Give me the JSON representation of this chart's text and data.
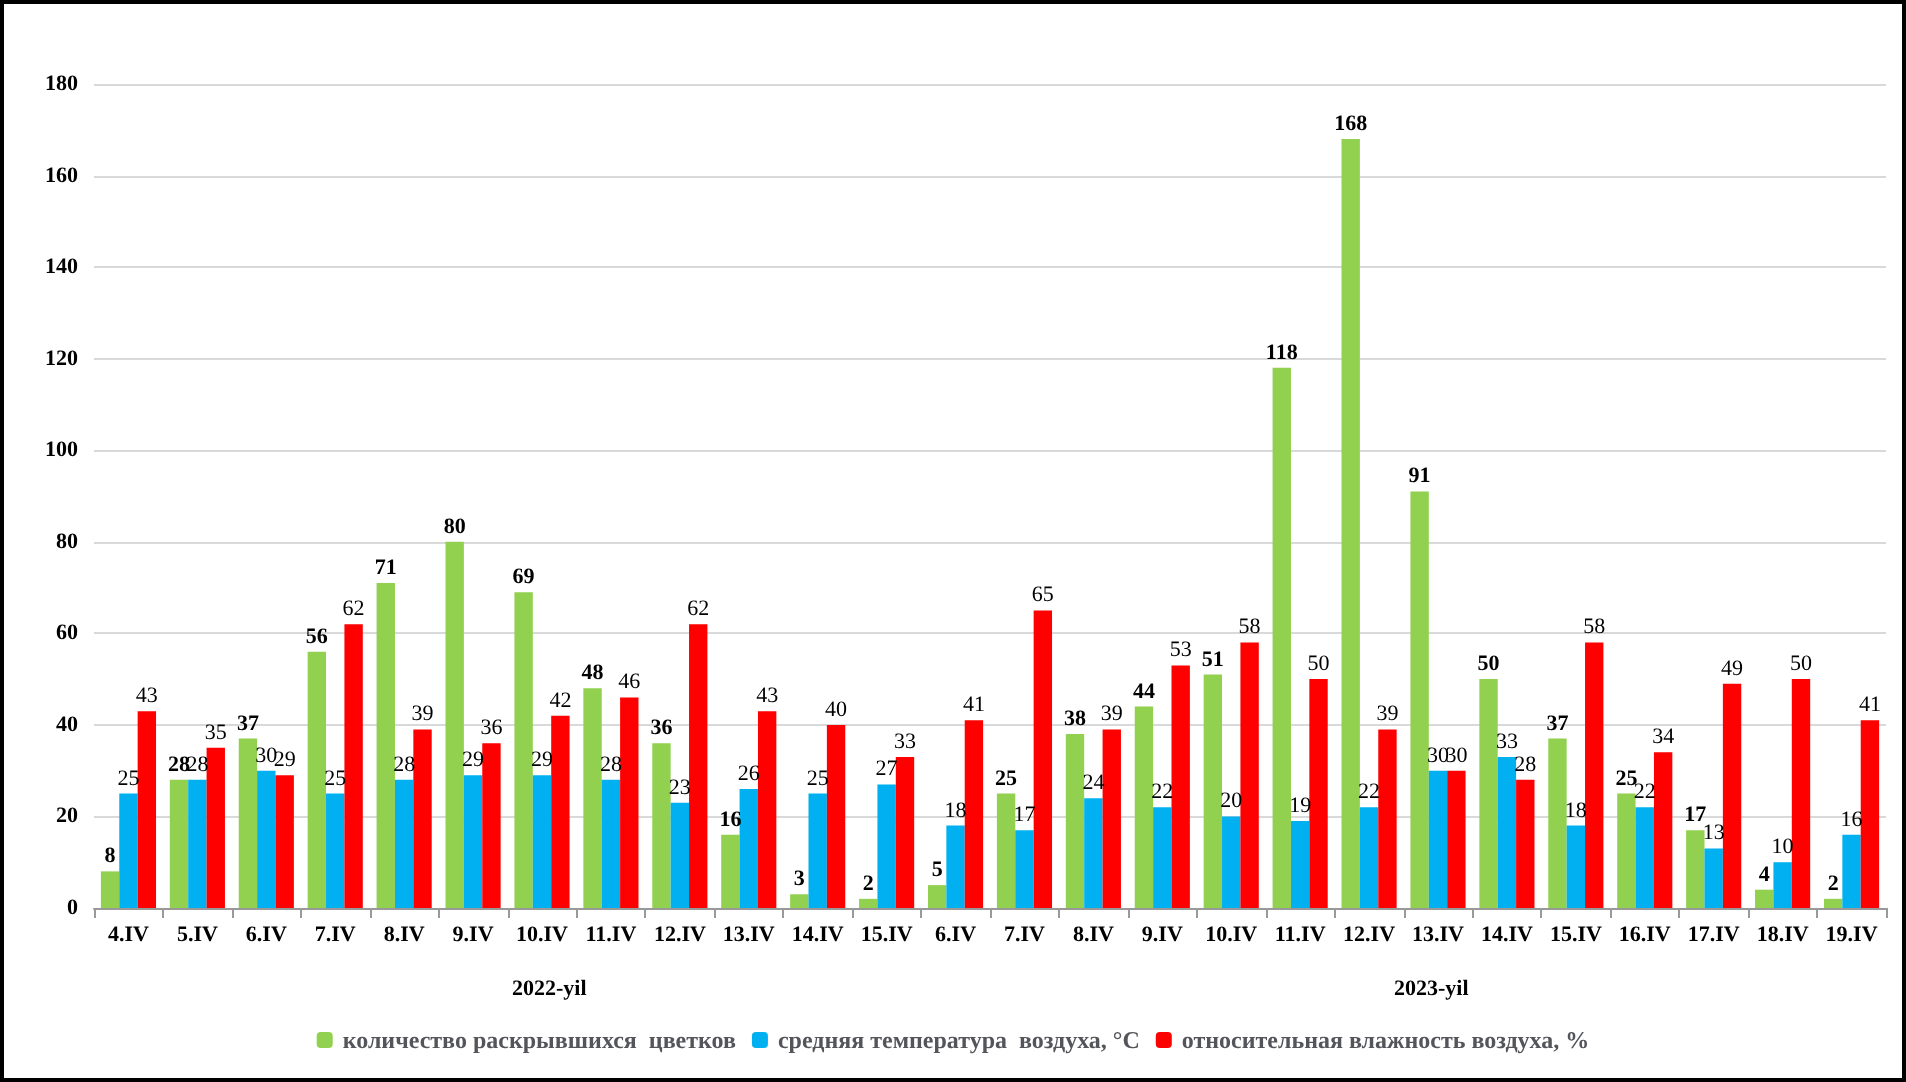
{
  "chart_data": {
    "type": "bar",
    "categories": [
      "4.IV",
      "5.IV",
      "6.IV",
      "7.IV",
      "8.IV",
      "9.IV",
      "10.IV",
      "11.IV",
      "12.IV",
      "13.IV",
      "14.IV",
      "15.IV",
      "6.IV",
      "7.IV",
      "8.IV",
      "9.IV",
      "10.IV",
      "11.IV",
      "12.IV",
      "13.IV",
      "14.IV",
      "15.IV",
      "16.IV",
      "17.IV",
      "18.IV",
      "19.IV"
    ],
    "series": [
      {
        "name": "количество раскрывшихся  цветков",
        "color": "#92d050",
        "values": [
          8,
          28,
          37,
          56,
          71,
          80,
          69,
          48,
          36,
          16,
          3,
          2,
          5,
          25,
          38,
          44,
          51,
          118,
          168,
          91,
          50,
          37,
          25,
          17,
          4,
          2
        ]
      },
      {
        "name": "средняя температура  воздуха, °С",
        "color": "#00b0f0",
        "values": [
          25,
          28,
          30,
          25,
          28,
          29,
          29,
          28,
          23,
          26,
          25,
          27,
          18,
          17,
          24,
          22,
          20,
          19,
          22,
          30,
          33,
          18,
          22,
          13,
          10,
          16
        ]
      },
      {
        "name": "относительная влажность воздуха, %",
        "color": "#ff0000",
        "values": [
          43,
          35,
          29,
          62,
          39,
          36,
          42,
          46,
          62,
          43,
          40,
          33,
          41,
          65,
          39,
          53,
          58,
          50,
          39,
          30,
          28,
          58,
          34,
          49,
          50,
          41
        ]
      }
    ],
    "annotations": [
      "2022-yil",
      "2023-yil"
    ],
    "ylim": [
      0,
      180
    ],
    "yticks": [
      0,
      20,
      40,
      60,
      80,
      100,
      120,
      140,
      160,
      180
    ],
    "grid": "y",
    "legend": "bottom",
    "data_labels": true
  }
}
